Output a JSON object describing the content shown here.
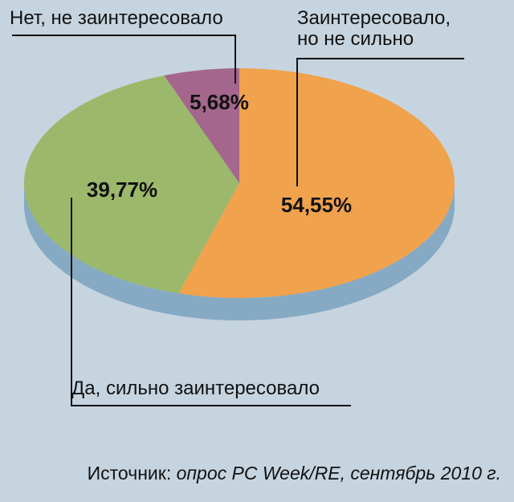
{
  "chart_data": {
    "type": "pie",
    "slices": [
      {
        "label": "Заинтересовало, но не сильно",
        "label_lines": [
          "Заинтересовало,",
          "но не сильно"
        ],
        "value": 54.55,
        "display": "54,55%",
        "color": "#f0a24c"
      },
      {
        "label": "Да, сильно заинтересовало",
        "label_lines": [
          "Да, сильно заинтересовало"
        ],
        "value": 39.77,
        "display": "39,77%",
        "color": "#9cb86b"
      },
      {
        "label": "Нет, не заинтересовало",
        "label_lines": [
          "Нет, не заинтересовало"
        ],
        "value": 5.68,
        "display": "5,68%",
        "color": "#a4668c"
      }
    ],
    "edge_color": "#86aac4",
    "background": "#c6d4df"
  },
  "source": {
    "prefix": "Источник: ",
    "text": "опрос PC Week/RE, сентябрь 2010 г."
  }
}
